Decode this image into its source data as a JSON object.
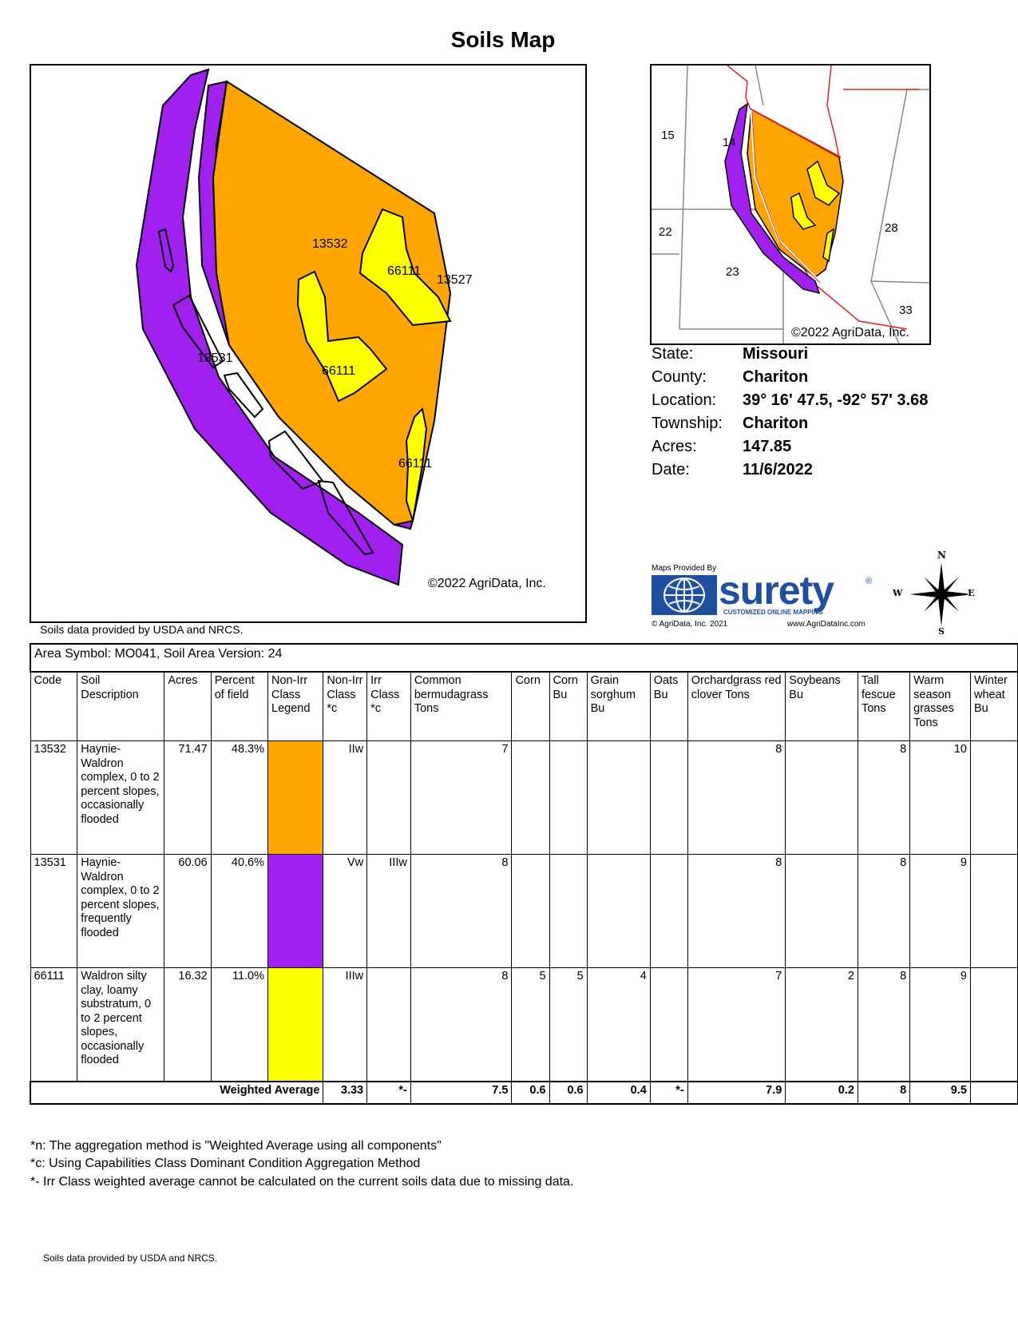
{
  "title": "Soils Map",
  "main_map": {
    "copyright": "©2022 AgriData, Inc.",
    "labels": [
      "13532",
      "66111",
      "13527",
      "13531",
      "66111",
      "66111"
    ]
  },
  "inset_map": {
    "copyright": "©2022 AgriData, Inc.",
    "sections": [
      "15",
      "14",
      "22",
      "28",
      "23",
      "33"
    ]
  },
  "info": {
    "state_label": "State:",
    "state": "Missouri",
    "county_label": "County:",
    "county": "Chariton",
    "location_label": "Location:",
    "location": "39° 16' 47.5,  -92° 57' 3.68",
    "township_label": "Township:",
    "township": "Chariton",
    "acres_label": "Acres:",
    "acres": "147.85",
    "date_label": "Date:",
    "date": "11/6/2022"
  },
  "logo": {
    "provided_by": "Maps Provided By",
    "brand": "surety",
    "registered": "®",
    "tagline": "CUSTOMIZED ONLINE MAPPING",
    "copyright": "© AgriData, Inc. 2021",
    "url": "www.AgriDataInc.com"
  },
  "compass": {
    "n": "N",
    "s": "S",
    "e": "E",
    "w": "W"
  },
  "usda_note": "Soils data provided by USDA and NRCS.",
  "table": {
    "area_symbol": "Area Symbol: MO041, Soil Area Version: 24",
    "headers": [
      "Code",
      "Soil Description",
      "Acres",
      "Percent of field",
      "Non-Irr Class Legend",
      "Non-Irr Class *c",
      "Irr Class *c",
      "Common bermudagrass Tons",
      "Corn",
      "Corn Bu",
      "Grain sorghum Bu",
      "Oats Bu",
      "Orchardgrass red clover Tons",
      "Soybeans Bu",
      "Tall fescue Tons",
      "Warm season grasses Tons",
      "Winter wheat Bu"
    ],
    "rows": [
      {
        "code": "13532",
        "description": "Haynie-Waldron complex, 0 to 2 percent slopes, occasionally flooded",
        "acres": "71.47",
        "percent": "48.3%",
        "legend_color": "#FFA500",
        "nonirr": "IIw",
        "irr": "",
        "bermuda": "7",
        "corn": "",
        "corn_bu": "",
        "sorghum": "",
        "oats": "",
        "orchard": "8",
        "soy": "",
        "fescue": "8",
        "warm": "10",
        "wheat": ""
      },
      {
        "code": "13531",
        "description": "Haynie-Waldron complex, 0 to 2 percent slopes, frequently flooded",
        "acres": "60.06",
        "percent": "40.6%",
        "legend_color": "#A020F0",
        "nonirr": "Vw",
        "irr": "IIIw",
        "bermuda": "8",
        "corn": "",
        "corn_bu": "",
        "sorghum": "",
        "oats": "",
        "orchard": "8",
        "soy": "",
        "fescue": "8",
        "warm": "9",
        "wheat": ""
      },
      {
        "code": "66111",
        "description": "Waldron silty clay, loamy substratum, 0 to 2 percent slopes, occasionally flooded",
        "acres": "16.32",
        "percent": "11.0%",
        "legend_color": "#FFFF00",
        "nonirr": "IIIw",
        "irr": "",
        "bermuda": "8",
        "corn": "5",
        "corn_bu": "5",
        "sorghum": "4",
        "oats": "",
        "orchard": "7",
        "soy": "2",
        "fescue": "8",
        "warm": "9",
        "wheat": ""
      }
    ],
    "weighted": {
      "label": "Weighted Average",
      "nonirr": "3.33",
      "irr": "*-",
      "bermuda": "7.5",
      "corn": "0.6",
      "corn_bu": "0.6",
      "sorghum": "0.4",
      "oats": "*-",
      "orchard": "7.9",
      "soy": "0.2",
      "fescue": "8",
      "warm": "9.5",
      "wheat": ""
    }
  },
  "footnotes": [
    "*n: The aggregation method is \"Weighted Average using all components\"",
    "*c:  Using Capabilities Class Dominant Condition Aggregation Method",
    "*- Irr Class weighted average cannot be calculated on the current soils data due to missing data."
  ]
}
